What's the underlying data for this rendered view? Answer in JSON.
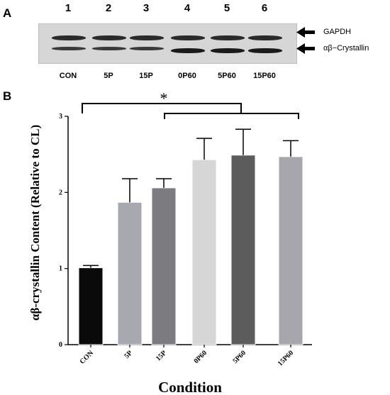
{
  "panels": {
    "a_label": "A",
    "b_label": "B"
  },
  "blot": {
    "lane_numbers": [
      "1",
      "2",
      "3",
      "4",
      "5",
      "6"
    ],
    "lane_labels": [
      "CON",
      "5P",
      "15P",
      "0P60",
      "5P60",
      "15P60"
    ],
    "band_labels": {
      "gapdh": "GAPDH",
      "crystallin": "αβ−Crystallin"
    }
  },
  "chart_data": {
    "type": "bar",
    "categories": [
      "CON",
      "5P",
      "15P",
      "0P60",
      "5P60",
      "15P60"
    ],
    "values": [
      1.01,
      1.87,
      2.06,
      2.43,
      2.49,
      2.47
    ],
    "errors": [
      0.03,
      0.31,
      0.12,
      0.28,
      0.34,
      0.21
    ],
    "bar_colors": [
      "#0a0a0a",
      "#a8a8b0",
      "#7c7c80",
      "#d6d6d6",
      "#5c5c5c",
      "#a6a6ac"
    ],
    "ylim": [
      0,
      3
    ],
    "yticks": [
      "0",
      "1",
      "2",
      "3"
    ],
    "xlabel": "Condition",
    "ylabel": "αβ-crystallin Content (Relative to CL)",
    "significance": {
      "marker": "*",
      "brackets": [
        {
          "from": "CON",
          "to": "0P60/5P60"
        },
        {
          "from": "15P",
          "to": "15P60"
        }
      ]
    }
  }
}
